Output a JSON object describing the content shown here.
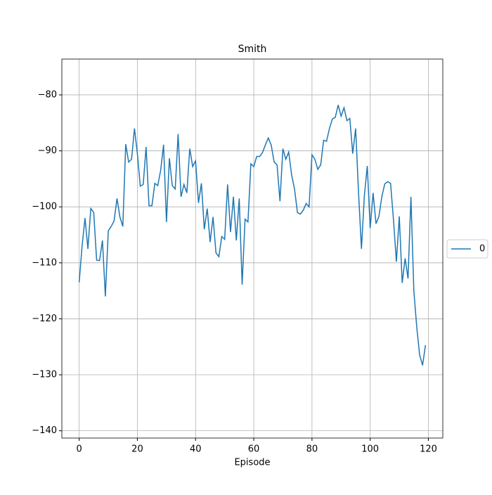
{
  "chart_data": {
    "type": "line",
    "title": "Smith",
    "xlabel": "Episode",
    "x": [
      0,
      1,
      2,
      3,
      4,
      5,
      6,
      7,
      8,
      9,
      10,
      11,
      12,
      13,
      14,
      15,
      16,
      17,
      18,
      19,
      20,
      21,
      22,
      23,
      24,
      25,
      26,
      27,
      28,
      29,
      30,
      31,
      32,
      33,
      34,
      35,
      36,
      37,
      38,
      39,
      40,
      41,
      42,
      43,
      44,
      45,
      46,
      47,
      48,
      49,
      50,
      51,
      52,
      53,
      54,
      55,
      56,
      57,
      58,
      59,
      60,
      61,
      62,
      63,
      64,
      65,
      66,
      67,
      68,
      69,
      70,
      71,
      72,
      73,
      74,
      75,
      76,
      77,
      78,
      79,
      80,
      81,
      82,
      83,
      84,
      85,
      86,
      87,
      88,
      89,
      90,
      91,
      92,
      93,
      94,
      95,
      96,
      97,
      98,
      99,
      100,
      101,
      102,
      103,
      104,
      105,
      106,
      107,
      108,
      109,
      110,
      111,
      112,
      113,
      114,
      115,
      116,
      117,
      118,
      119
    ],
    "series": [
      {
        "name": "0",
        "color": "#1f77b4",
        "values": [
          -113.5,
          -107,
          -102,
          -107.5,
          -100.3,
          -101,
          -109.5,
          -109.6,
          -106,
          -116,
          -104.3,
          -103.5,
          -102.5,
          -98.5,
          -101.8,
          -103.5,
          -88.8,
          -92,
          -91.5,
          -86,
          -90.5,
          -96.3,
          -96,
          -89.3,
          -99.8,
          -99.8,
          -95.8,
          -96.2,
          -93.5,
          -88.9,
          -102.7,
          -91.3,
          -96.2,
          -96.8,
          -87,
          -98.2,
          -96,
          -97.5,
          -89.6,
          -92.8,
          -91.8,
          -99.3,
          -95.8,
          -104,
          -100.3,
          -106.3,
          -101.8,
          -108.2,
          -108.9,
          -105.3,
          -105.8,
          -96,
          -104.5,
          -98.2,
          -106,
          -98.5,
          -113.9,
          -102.2,
          -102.7,
          -92.3,
          -92.8,
          -91,
          -91,
          -90.3,
          -88.9,
          -87.7,
          -89,
          -92,
          -92.5,
          -99,
          -89.6,
          -91.5,
          -90.2,
          -94.3,
          -96.8,
          -101,
          -101.3,
          -100.6,
          -99.4,
          -100,
          -90.7,
          -91.5,
          -93.3,
          -92.5,
          -88.1,
          -88.3,
          -86,
          -84.3,
          -84,
          -81.8,
          -83.8,
          -82.3,
          -84.6,
          -84.2,
          -90.5,
          -86,
          -97.5,
          -107.5,
          -98,
          -92.7,
          -103.8,
          -97.5,
          -103,
          -101.7,
          -98.2,
          -95.9,
          -95.5,
          -95.8,
          -102.3,
          -109.8,
          -101.7,
          -113.6,
          -109.2,
          -112.8,
          -98.2,
          -115,
          -121.5,
          -126.5,
          -128.3,
          -124.7
        ]
      }
    ],
    "xlim": [
      -5.95,
      124.95
    ],
    "ylim": [
      -141.3,
      -73.6
    ],
    "xticks": [
      0,
      20,
      40,
      60,
      80,
      100,
      120
    ],
    "yticks": [
      {
        "value": -140,
        "label": "−140"
      },
      {
        "value": -130,
        "label": "−130"
      },
      {
        "value": -120,
        "label": "−120"
      },
      {
        "value": -110,
        "label": "−110"
      },
      {
        "value": -100,
        "label": "−100"
      },
      {
        "value": -90,
        "label": "−90"
      },
      {
        "value": -80,
        "label": "−80"
      }
    ],
    "grid": true,
    "legend": "right"
  }
}
